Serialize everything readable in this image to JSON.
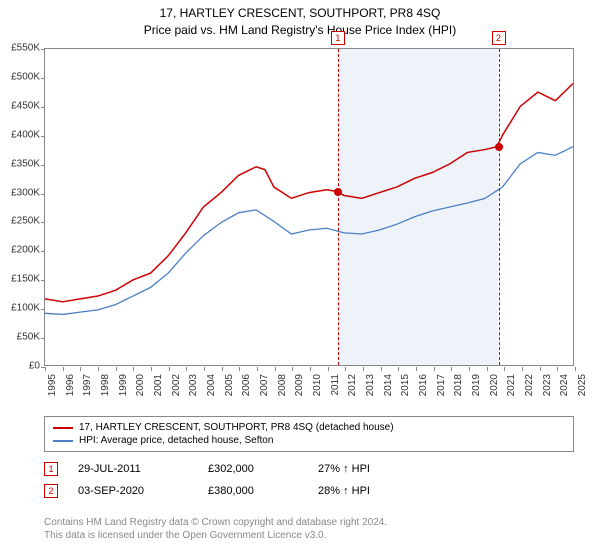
{
  "title": "17, HARTLEY CRESCENT, SOUTHPORT, PR8 4SQ",
  "subtitle": "Price paid vs. HM Land Registry's House Price Index (HPI)",
  "chart": {
    "type": "line",
    "background": "#ffffff",
    "border_color": "#888888",
    "ylim": [
      0,
      550000
    ],
    "ytick_step": 50000,
    "ytick_labels": [
      "£0",
      "£50K",
      "£100K",
      "£150K",
      "£200K",
      "£250K",
      "£300K",
      "£350K",
      "£400K",
      "£450K",
      "£500K",
      "£550K"
    ],
    "xlim": [
      1995,
      2025
    ],
    "xtick_step": 1,
    "xtick_labels": [
      "1995",
      "1996",
      "1997",
      "1998",
      "1999",
      "2000",
      "2001",
      "2002",
      "2003",
      "2004",
      "2005",
      "2006",
      "2007",
      "2008",
      "2009",
      "2010",
      "2011",
      "2012",
      "2013",
      "2014",
      "2015",
      "2016",
      "2017",
      "2018",
      "2019",
      "2020",
      "2021",
      "2022",
      "2023",
      "2024",
      "2025"
    ],
    "shade_start": 2011.58,
    "shade_end": 2020.67,
    "shade_color": "rgba(200,215,235,0.3)",
    "dash_color_1": "#cc0000",
    "dash_color_2": "#cc0000",
    "series": [
      {
        "name": "property",
        "color": "#cc0000",
        "width": 1.5,
        "data": [
          [
            1995,
            115000
          ],
          [
            1996,
            110000
          ],
          [
            1997,
            115000
          ],
          [
            1998,
            120000
          ],
          [
            1999,
            130000
          ],
          [
            2000,
            148000
          ],
          [
            2001,
            160000
          ],
          [
            2002,
            190000
          ],
          [
            2003,
            230000
          ],
          [
            2004,
            275000
          ],
          [
            2005,
            300000
          ],
          [
            2006,
            330000
          ],
          [
            2007,
            345000
          ],
          [
            2007.5,
            340000
          ],
          [
            2008,
            310000
          ],
          [
            2009,
            290000
          ],
          [
            2010,
            300000
          ],
          [
            2011,
            305000
          ],
          [
            2011.58,
            302000
          ],
          [
            2012,
            295000
          ],
          [
            2013,
            290000
          ],
          [
            2014,
            300000
          ],
          [
            2015,
            310000
          ],
          [
            2016,
            325000
          ],
          [
            2017,
            335000
          ],
          [
            2018,
            350000
          ],
          [
            2019,
            370000
          ],
          [
            2020,
            375000
          ],
          [
            2020.67,
            380000
          ],
          [
            2021,
            400000
          ],
          [
            2022,
            450000
          ],
          [
            2023,
            475000
          ],
          [
            2024,
            460000
          ],
          [
            2025,
            490000
          ]
        ]
      },
      {
        "name": "hpi",
        "color": "#4a7fc4",
        "width": 1.3,
        "data": [
          [
            1995,
            90000
          ],
          [
            1996,
            88000
          ],
          [
            1997,
            92000
          ],
          [
            1998,
            96000
          ],
          [
            1999,
            105000
          ],
          [
            2000,
            120000
          ],
          [
            2001,
            135000
          ],
          [
            2002,
            160000
          ],
          [
            2003,
            195000
          ],
          [
            2004,
            225000
          ],
          [
            2005,
            248000
          ],
          [
            2006,
            265000
          ],
          [
            2007,
            270000
          ],
          [
            2008,
            250000
          ],
          [
            2009,
            228000
          ],
          [
            2010,
            235000
          ],
          [
            2011,
            238000
          ],
          [
            2012,
            230000
          ],
          [
            2013,
            228000
          ],
          [
            2014,
            235000
          ],
          [
            2015,
            245000
          ],
          [
            2016,
            258000
          ],
          [
            2017,
            268000
          ],
          [
            2018,
            275000
          ],
          [
            2019,
            282000
          ],
          [
            2020,
            290000
          ],
          [
            2021,
            310000
          ],
          [
            2022,
            350000
          ],
          [
            2023,
            370000
          ],
          [
            2024,
            365000
          ],
          [
            2025,
            380000
          ]
        ]
      }
    ],
    "points": [
      {
        "x": 2011.58,
        "y": 302000,
        "color": "#cc0000"
      },
      {
        "x": 2020.67,
        "y": 380000,
        "color": "#cc0000"
      }
    ],
    "markers": [
      {
        "x": 2011.58,
        "label": "1",
        "color": "#cc0000"
      },
      {
        "x": 2020.67,
        "label": "2",
        "color": "#cc0000"
      }
    ]
  },
  "legend": {
    "items": [
      {
        "color": "#cc0000",
        "label": "17, HARTLEY CRESCENT, SOUTHPORT, PR8 4SQ (detached house)"
      },
      {
        "color": "#4a7fc4",
        "label": "HPI: Average price, detached house, Sefton"
      }
    ]
  },
  "sales": [
    {
      "marker": "1",
      "marker_color": "#cc0000",
      "date": "29-JUL-2011",
      "price": "£302,000",
      "hpi": "27% ↑ HPI"
    },
    {
      "marker": "2",
      "marker_color": "#cc0000",
      "date": "03-SEP-2020",
      "price": "£380,000",
      "hpi": "28% ↑ HPI"
    }
  ],
  "footer": {
    "line1": "Contains HM Land Registry data © Crown copyright and database right 2024.",
    "line2": "This data is licensed under the Open Government Licence v3.0."
  }
}
